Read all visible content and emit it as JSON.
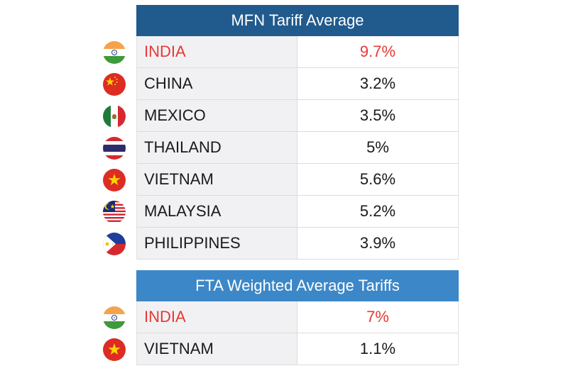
{
  "tables": [
    {
      "title": "MFN Tariff Average",
      "header_color": "#215a8d",
      "rows": [
        {
          "country": "INDIA",
          "value": "9.7%",
          "highlight": true,
          "flag": "india-flag-icon"
        },
        {
          "country": "CHINA",
          "value": "3.2%",
          "highlight": false,
          "flag": "china-flag-icon"
        },
        {
          "country": "MEXICO",
          "value": "3.5%",
          "highlight": false,
          "flag": "mexico-flag-icon"
        },
        {
          "country": "THAILAND",
          "value": "5%",
          "highlight": false,
          "flag": "thailand-flag-icon"
        },
        {
          "country": "VIETNAM",
          "value": "5.6%",
          "highlight": false,
          "flag": "vietnam-flag-icon"
        },
        {
          "country": "MALAYSIA",
          "value": "5.2%",
          "highlight": false,
          "flag": "malaysia-flag-icon"
        },
        {
          "country": "PHILIPPINES",
          "value": "3.9%",
          "highlight": false,
          "flag": "philippines-flag-icon"
        }
      ]
    },
    {
      "title": "FTA Weighted Average Tariffs",
      "header_color": "#3c87c8",
      "rows": [
        {
          "country": "INDIA",
          "value": "7%",
          "highlight": true,
          "flag": "india-flag-icon"
        },
        {
          "country": "VIETNAM",
          "value": "1.1%",
          "highlight": false,
          "flag": "vietnam-flag-icon"
        }
      ]
    }
  ],
  "highlight_color": "#e53935",
  "chart_data": {
    "type": "table",
    "tables": [
      {
        "title": "MFN Tariff Average",
        "categories": [
          "INDIA",
          "CHINA",
          "MEXICO",
          "THAILAND",
          "VIETNAM",
          "MALAYSIA",
          "PHILIPPINES"
        ],
        "values": [
          9.7,
          3.2,
          3.5,
          5,
          5.6,
          5.2,
          3.9
        ]
      },
      {
        "title": "FTA Weighted Average Tariffs",
        "categories": [
          "INDIA",
          "VIETNAM"
        ],
        "values": [
          7,
          1.1
        ]
      }
    ]
  }
}
